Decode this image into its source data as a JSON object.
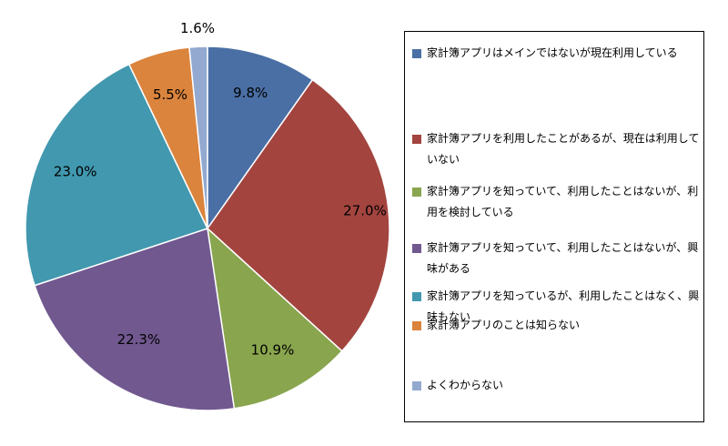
{
  "chart_data": {
    "type": "pie",
    "title": "",
    "start_angle_deg": 0,
    "direction": "clockwise",
    "legend_position": "right",
    "slices": [
      {
        "label": "家計簿アプリはメインではないが現在利用している",
        "value": 9.8,
        "display": "9.8%",
        "color": "#4a6fa5"
      },
      {
        "label": "家計簿アプリを利用したことがあるが、現在は利用していない",
        "value": 27.0,
        "display": "27.0%",
        "color": "#a3443f"
      },
      {
        "label": "家計簿アプリを知っていて、利用したことはないが、利用を検討している",
        "value": 10.9,
        "display": "10.9%",
        "color": "#89a54e"
      },
      {
        "label": "家計簿アプリを知っていて、利用したことはないが、興味がある",
        "value": 22.3,
        "display": "22.3%",
        "color": "#71588f"
      },
      {
        "label": "家計簿アプリを知っているが、利用したことはなく、興味もない",
        "value": 23.0,
        "display": "23.0%",
        "color": "#4198af"
      },
      {
        "label": "家計簿アプリのことは知らない",
        "value": 5.5,
        "display": "5.5%",
        "color": "#db843d"
      },
      {
        "label": "よくわからない",
        "value": 1.6,
        "display": "1.6%",
        "color": "#93a9cf"
      }
    ]
  }
}
